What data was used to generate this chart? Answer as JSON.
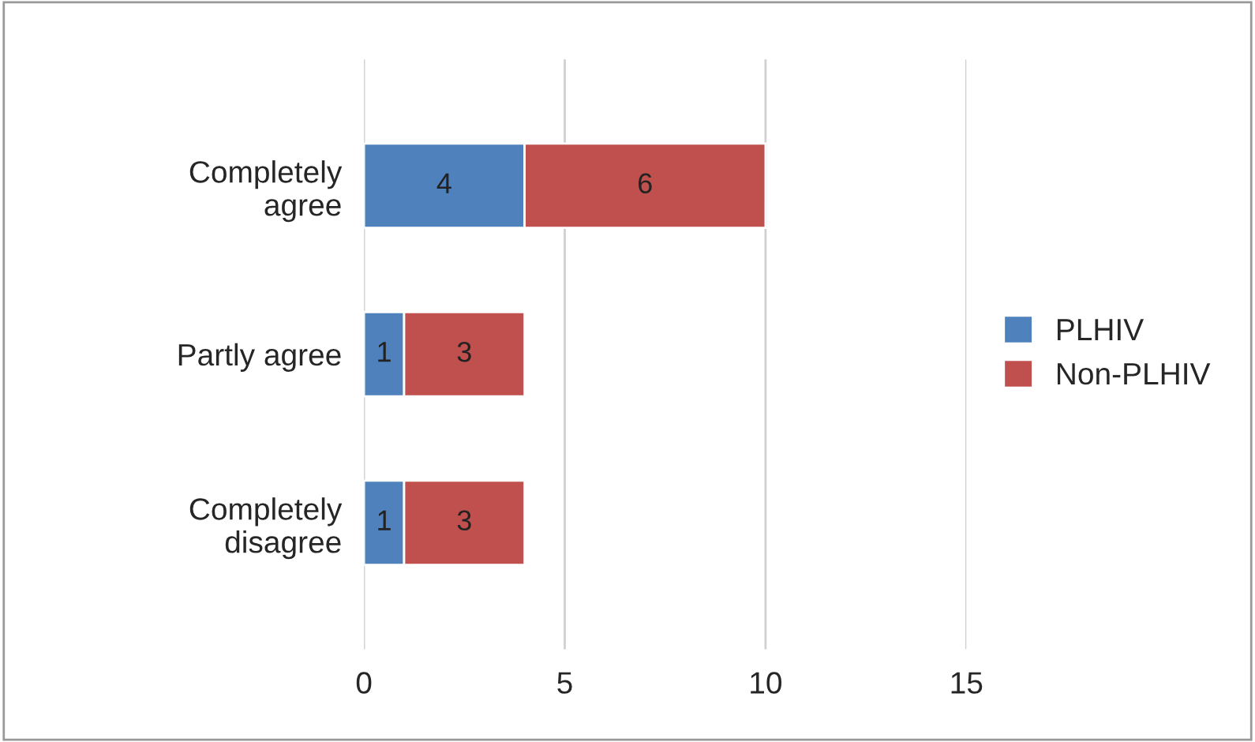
{
  "chart_data": {
    "type": "bar",
    "orientation": "horizontal",
    "stacked": true,
    "categories": [
      "Completely\nagree",
      "Partly agree",
      "Completely\ndisagree"
    ],
    "series": [
      {
        "name": "PLHIV",
        "color": "#4f81bd",
        "values": [
          4,
          1,
          1
        ]
      },
      {
        "name": "Non-PLHIV",
        "color": "#c0504d",
        "values": [
          6,
          3,
          3
        ]
      }
    ],
    "xlim": [
      0,
      15
    ],
    "xticks": [
      0,
      5,
      10,
      15
    ],
    "grid": "x",
    "legend": "right",
    "data_labels": true
  }
}
